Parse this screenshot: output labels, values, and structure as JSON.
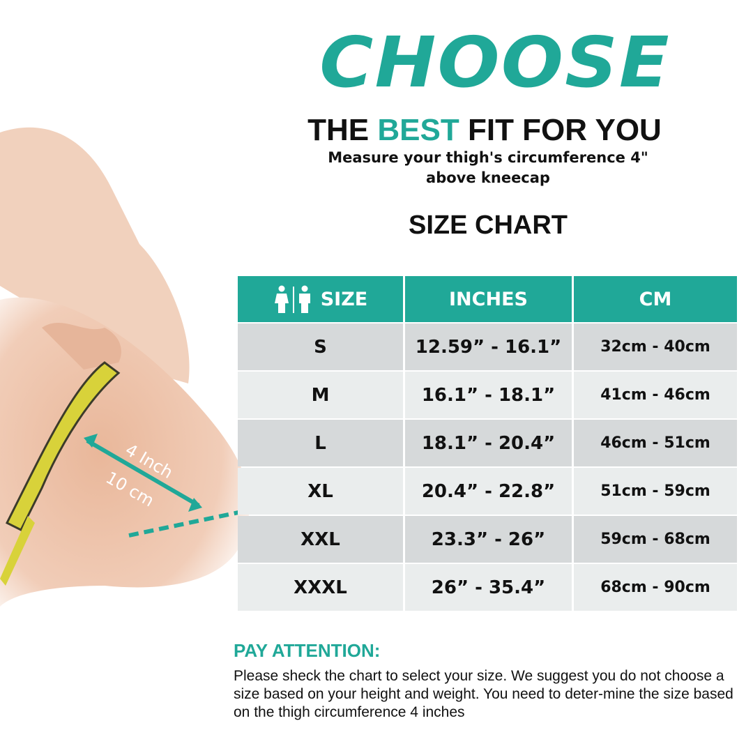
{
  "headline": "CHOOSE",
  "tagline": {
    "before": "THE ",
    "highlight": "BEST",
    "after": " FIT FOR YOU"
  },
  "instruction": "Measure your thigh's circumference 4\" above kneecap",
  "chart_title": "SIZE CHART",
  "illustration": {
    "label_inch": "4 Inch",
    "label_cm": "10 cm"
  },
  "table": {
    "headers": {
      "size": "SIZE",
      "inches": "INCHES",
      "cm": "CM",
      "size_icon": "male-female-icon"
    },
    "rows": [
      {
        "size": "S",
        "inches": "12.59” - 16.1”",
        "cm": "32cm - 40cm"
      },
      {
        "size": "M",
        "inches": "16.1” -  18.1”",
        "cm": "41cm - 46cm"
      },
      {
        "size": "L",
        "inches": "18.1” - 20.4”",
        "cm": "46cm - 51cm"
      },
      {
        "size": "XL",
        "inches": "20.4” - 22.8”",
        "cm": "51cm - 59cm"
      },
      {
        "size": "XXL",
        "inches": "23.3” - 26”",
        "cm": "59cm - 68cm"
      },
      {
        "size": "XXXL",
        "inches": "26” - 35.4”",
        "cm": "68cm - 90cm"
      }
    ]
  },
  "attention": {
    "title": "PAY ATTENTION:",
    "body": "Please sheck the chart to select your size. We suggest you do not choose a size based on your height and weight. You need to deter-mine the size based on the thigh circumference 4 inches"
  },
  "colors": {
    "accent": "#20a898",
    "row_dark": "#d6d9da",
    "row_light": "#eaeded"
  }
}
